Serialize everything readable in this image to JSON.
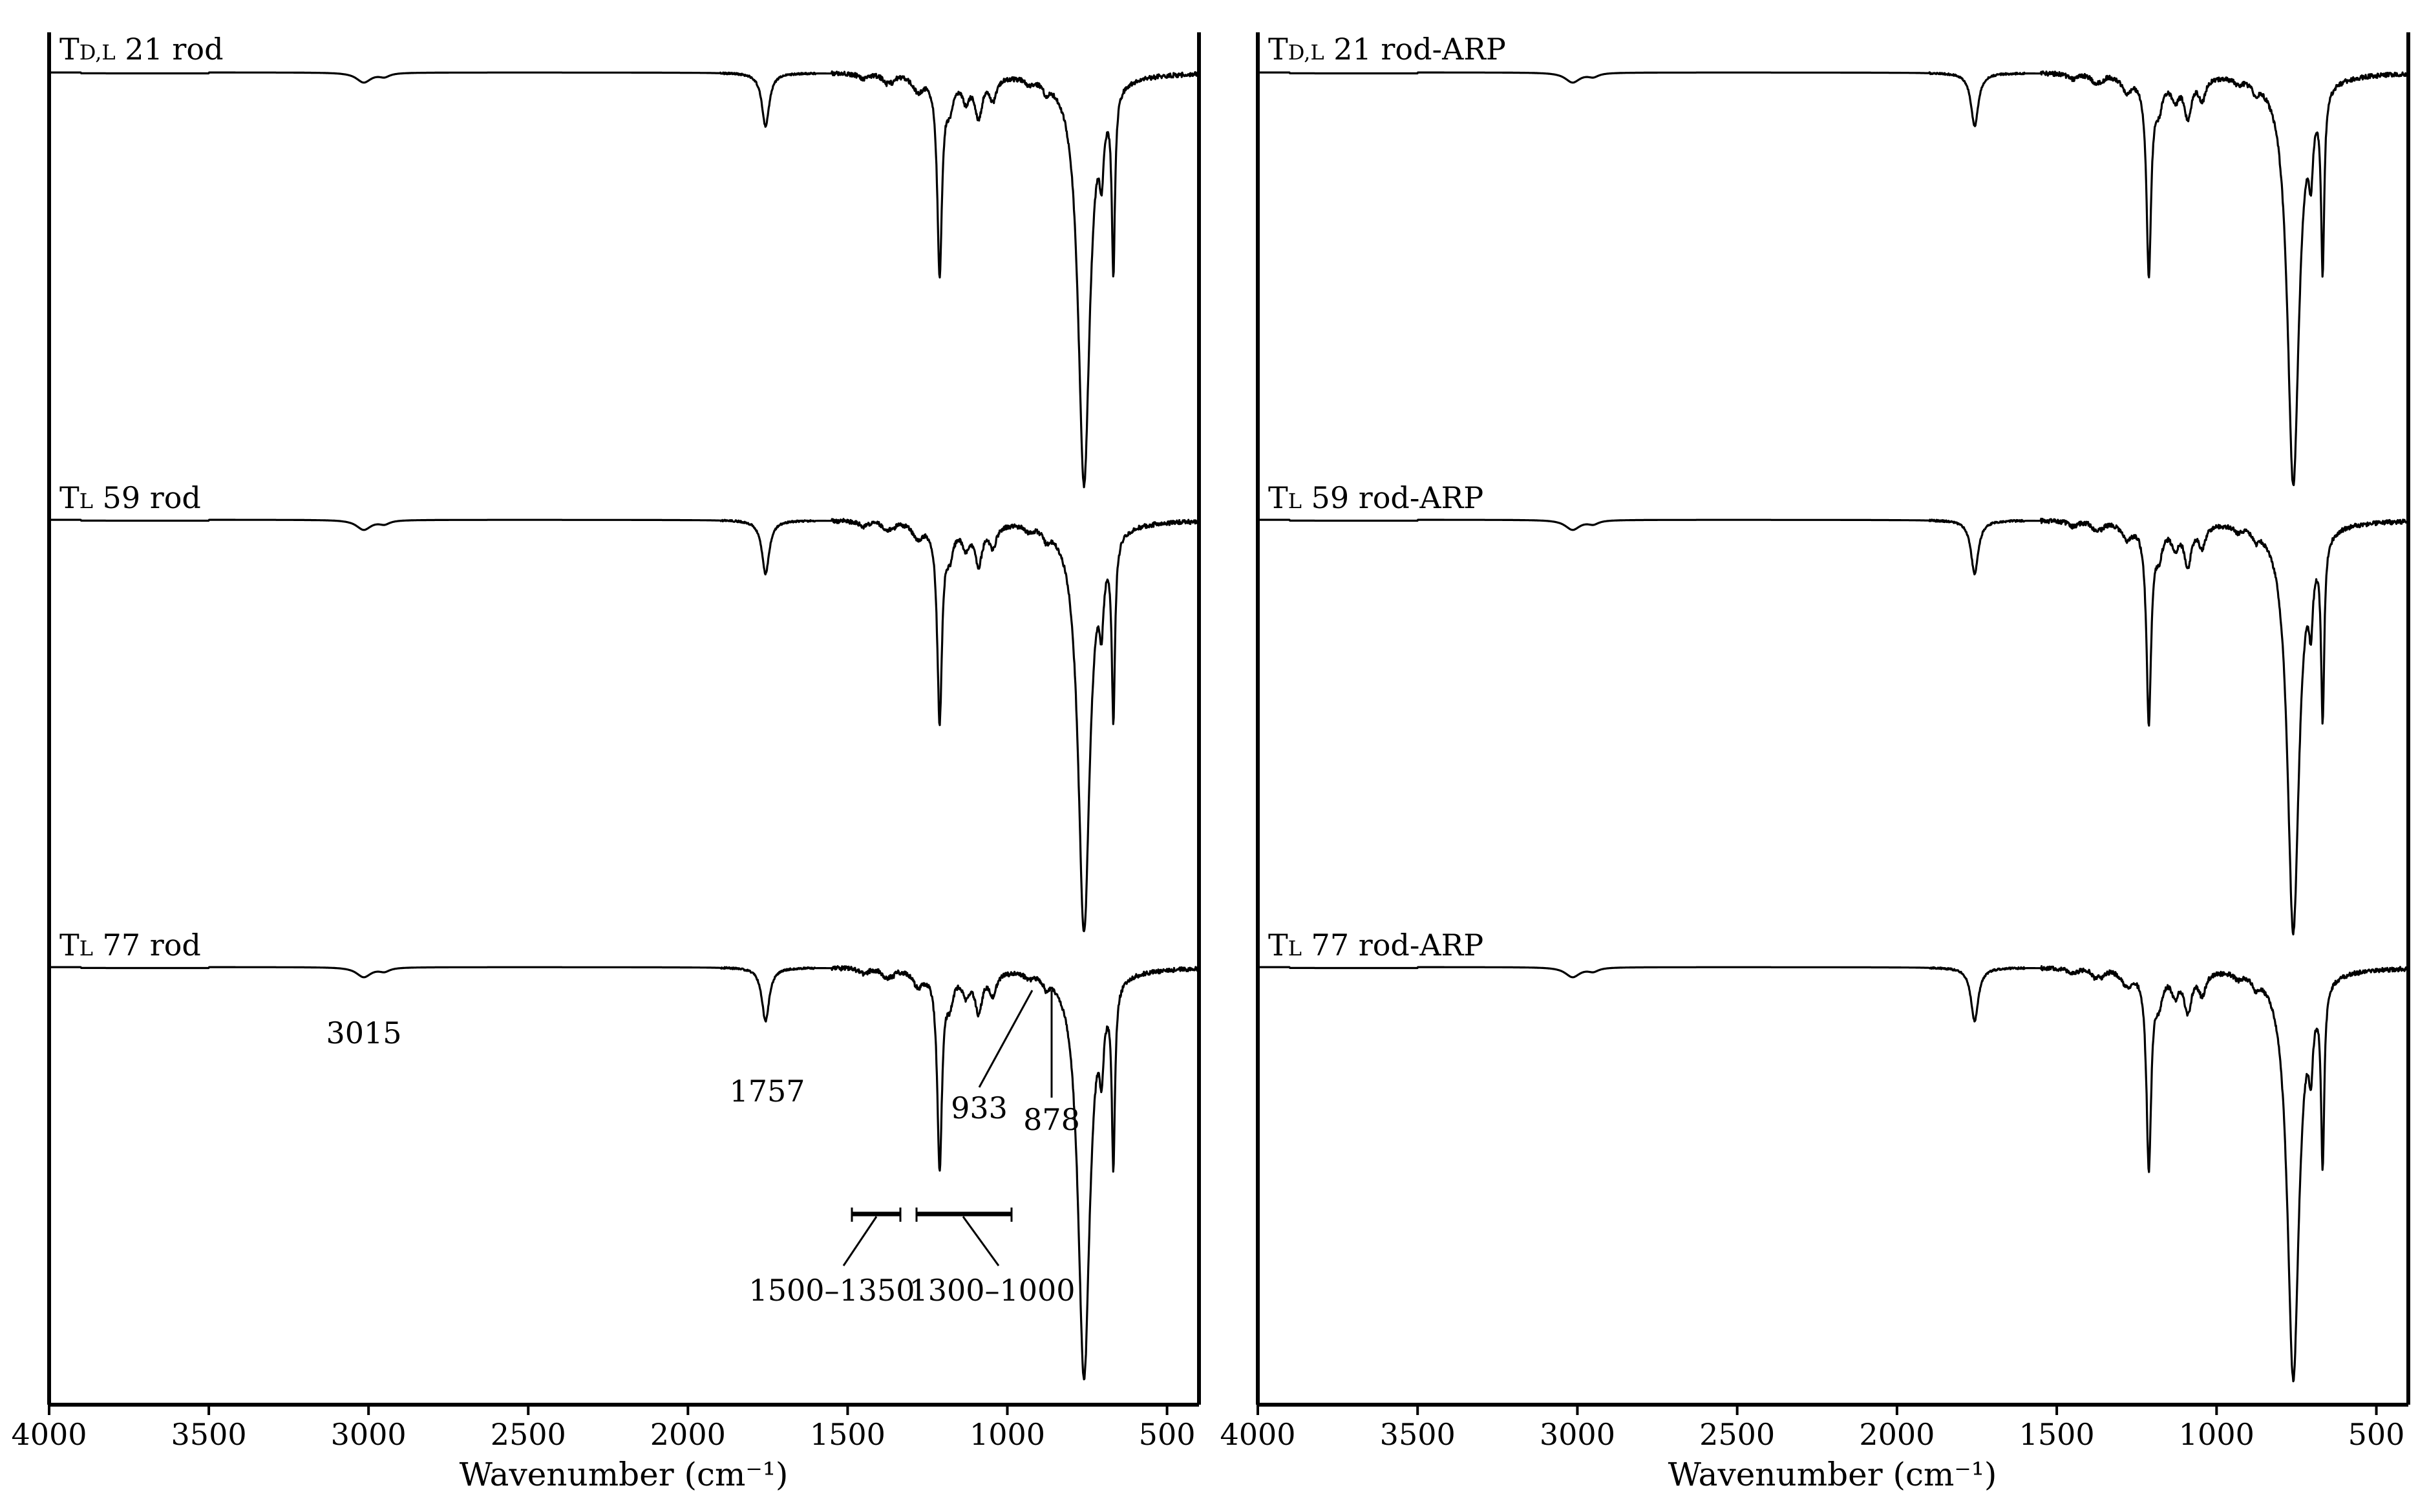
{
  "chart_data": [
    {
      "type": "line",
      "panel": "left",
      "xlabel": "Wavenumber (cm⁻¹)",
      "xlim": [
        4000,
        400
      ],
      "x_reversed": true,
      "xticks": [
        4000,
        3500,
        3000,
        2500,
        2000,
        1500,
        1000,
        500
      ],
      "tick_labels": [
        "4000",
        "3500",
        "3000",
        "2500",
        "2000",
        "1500",
        "1000",
        "500"
      ],
      "series": [
        {
          "name": "TD,L 21 rod",
          "label_main": "T",
          "label_sub": "D,L",
          "label_rest": " 21 rod"
        },
        {
          "name": "TL 59 rod",
          "label_main": "T",
          "label_sub": "L",
          "label_rest": " 59 rod"
        },
        {
          "name": "TL 77 rod",
          "label_main": "T",
          "label_sub": "L",
          "label_rest": " 77 rod"
        }
      ],
      "annotations": [
        {
          "text": "3015",
          "x": 3015
        },
        {
          "text": "1757",
          "x": 1757
        },
        {
          "text": "933",
          "x": 933
        },
        {
          "text": "878",
          "x": 878
        },
        {
          "text": "1500–1350",
          "range": [
            1500,
            1350
          ]
        },
        {
          "text": "1300–1000",
          "range": [
            1300,
            1000
          ]
        }
      ]
    },
    {
      "type": "line",
      "panel": "right",
      "xlabel": "Wavenumber (cm⁻¹)",
      "xlim": [
        4000,
        400
      ],
      "x_reversed": true,
      "xticks": [
        4000,
        3500,
        3000,
        2500,
        2000,
        1500,
        1000,
        500
      ],
      "tick_labels": [
        "4000",
        "3500",
        "3000",
        "2500",
        "2000",
        "1500",
        "1000",
        "500"
      ],
      "series": [
        {
          "name": "TD,L 21 rod-ARP",
          "label_main": "T",
          "label_sub": "D,L",
          "label_rest": " 21 rod-ARP"
        },
        {
          "name": "TL 59 rod-ARP",
          "label_main": "T",
          "label_sub": "L",
          "label_rest": " 59 rod-ARP"
        },
        {
          "name": "TL 77 rod-ARP",
          "label_main": "T",
          "label_sub": "L",
          "label_rest": " 77 rod-ARP"
        }
      ]
    }
  ],
  "peaks": [
    {
      "x": 3015,
      "depth": 0.022,
      "width": 28
    },
    {
      "x": 2950,
      "depth": 0.008,
      "width": 20
    },
    {
      "x": 1757,
      "depth": 0.12,
      "width": 14
    },
    {
      "x": 1450,
      "depth": 0.012,
      "width": 16
    },
    {
      "x": 1380,
      "depth": 0.018,
      "width": 12
    },
    {
      "x": 1360,
      "depth": 0.012,
      "width": 10
    },
    {
      "x": 1280,
      "depth": 0.035,
      "width": 20
    },
    {
      "x": 1212,
      "depth": 0.44,
      "width": 9
    },
    {
      "x": 1180,
      "depth": 0.06,
      "width": 14
    },
    {
      "x": 1130,
      "depth": 0.05,
      "width": 14
    },
    {
      "x": 1090,
      "depth": 0.09,
      "width": 14
    },
    {
      "x": 1045,
      "depth": 0.05,
      "width": 13
    },
    {
      "x": 933,
      "depth": 0.012,
      "width": 12
    },
    {
      "x": 878,
      "depth": 0.022,
      "width": 10
    },
    {
      "x": 760,
      "depth": 0.92,
      "width": 22
    },
    {
      "x": 705,
      "depth": 0.14,
      "width": 8
    },
    {
      "x": 668,
      "depth": 0.4,
      "width": 6
    }
  ]
}
